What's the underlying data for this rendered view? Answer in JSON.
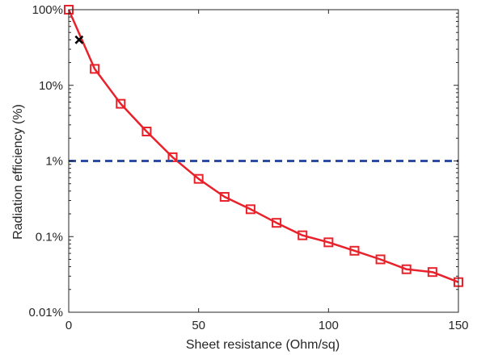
{
  "chart_data": {
    "type": "line",
    "xlabel": "Sheet resistance (Ohm/sq)",
    "ylabel": "Radiation efficiency (%)",
    "xlim": [
      0,
      150
    ],
    "ylim": [
      0.01,
      100
    ],
    "yscale": "log",
    "x_ticks": [
      0,
      50,
      100,
      150
    ],
    "x_tick_labels": [
      "0",
      "50",
      "100",
      "150"
    ],
    "y_ticks": [
      0.01,
      0.1,
      1,
      10,
      100
    ],
    "y_tick_labels": [
      "0.01%",
      "0.1%",
      "1%",
      "10%",
      "100%"
    ],
    "grid": false,
    "legend": false,
    "series": [
      {
        "color": "#e8212a",
        "marker": "square",
        "line": "solid",
        "x": [
          0,
          10,
          20,
          30,
          40,
          50,
          60,
          70,
          80,
          90,
          100,
          110,
          120,
          130,
          140,
          150
        ],
        "y": [
          100,
          16.5,
          5.7,
          2.45,
          1.12,
          0.58,
          0.335,
          0.23,
          0.152,
          0.104,
          0.084,
          0.065,
          0.05,
          0.037,
          0.034,
          0.025
        ]
      },
      {
        "color": "#000000",
        "marker": "x",
        "line": "none",
        "x": [
          4
        ],
        "y": [
          40
        ]
      },
      {
        "color": "#2b4ea0",
        "marker": "none",
        "line": "dashed",
        "x": [
          0,
          150
        ],
        "y": [
          1,
          1
        ]
      }
    ]
  }
}
